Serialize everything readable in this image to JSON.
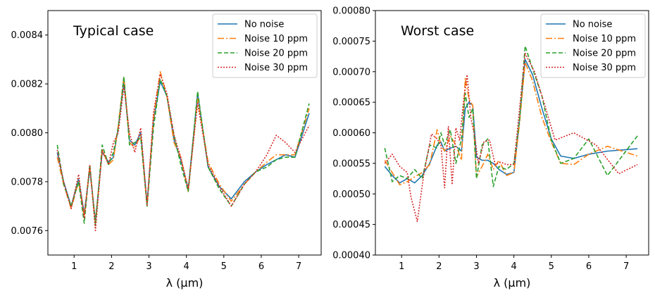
{
  "chart_data": [
    {
      "type": "line",
      "title": "Typical case",
      "xlabel": "λ (μm)",
      "ylabel": "",
      "xlim": [
        0.3,
        7.6
      ],
      "ylim": [
        0.0075,
        0.0085
      ],
      "xticks": [
        1,
        2,
        3,
        4,
        5,
        6,
        7
      ],
      "yticks": [
        0.0076,
        0.0078,
        0.008,
        0.0082,
        0.0084
      ],
      "ytick_labels": [
        "0.0076",
        "0.0078",
        "0.0080",
        "0.0082",
        "0.0084"
      ],
      "legend_position": "top-right",
      "x": [
        0.55,
        0.72,
        0.92,
        1.12,
        1.27,
        1.42,
        1.57,
        1.75,
        1.92,
        2.05,
        2.18,
        2.33,
        2.48,
        2.62,
        2.78,
        2.95,
        3.12,
        3.3,
        3.48,
        3.67,
        3.85,
        4.05,
        4.3,
        4.58,
        4.88,
        5.2,
        5.55,
        5.85,
        6.15,
        6.4,
        6.65,
        6.9,
        7.28
      ],
      "series": [
        {
          "name": "No noise",
          "color": "#1f77b4",
          "dash": "solid",
          "values": [
            0.00792,
            0.0078,
            0.0077,
            0.00781,
            0.00767,
            0.00785,
            0.00764,
            0.00792,
            0.00788,
            0.0079,
            0.00802,
            0.00821,
            0.00797,
            0.00795,
            0.008,
            0.00771,
            0.00805,
            0.00821,
            0.00815,
            0.00797,
            0.00789,
            0.00777,
            0.00816,
            0.00786,
            0.00778,
            0.00773,
            0.0078,
            0.00784,
            0.00787,
            0.00789,
            0.00791,
            0.0079,
            0.00808
          ]
        },
        {
          "name": "Noise 10 ppm",
          "color": "#ff7f0e",
          "dash": "dashdot",
          "values": [
            0.0079,
            0.00779,
            0.00769,
            0.0078,
            0.00766,
            0.00786,
            0.00763,
            0.00793,
            0.00787,
            0.00789,
            0.00803,
            0.00823,
            0.00796,
            0.00794,
            0.00799,
            0.0077,
            0.00806,
            0.00825,
            0.00815,
            0.00796,
            0.0079,
            0.00776,
            0.00814,
            0.00788,
            0.00779,
            0.00772,
            0.00779,
            0.00784,
            0.00788,
            0.00791,
            0.00791,
            0.00791,
            0.0081
          ]
        },
        {
          "name": "Noise 20 ppm",
          "color": "#2ca02c",
          "dash": "dashed",
          "values": [
            0.00795,
            0.00779,
            0.0077,
            0.0078,
            0.00763,
            0.00787,
            0.00762,
            0.00795,
            0.00787,
            0.00792,
            0.00802,
            0.00823,
            0.00795,
            0.00796,
            0.00798,
            0.0077,
            0.00802,
            0.00822,
            0.00815,
            0.00799,
            0.00787,
            0.00776,
            0.00817,
            0.00786,
            0.00777,
            0.0077,
            0.00779,
            0.00784,
            0.00786,
            0.00789,
            0.0079,
            0.0079,
            0.00812
          ]
        },
        {
          "name": "Noise 30 ppm",
          "color": "#d62728",
          "dash": "dotted",
          "values": [
            0.00793,
            0.0078,
            0.00769,
            0.00783,
            0.00765,
            0.00787,
            0.0076,
            0.00793,
            0.00787,
            0.00796,
            0.008,
            0.00819,
            0.008,
            0.00792,
            0.00802,
            0.0077,
            0.00808,
            0.00824,
            0.00816,
            0.00799,
            0.0079,
            0.00777,
            0.00812,
            0.00787,
            0.00778,
            0.0077,
            0.00779,
            0.00784,
            0.00791,
            0.00799,
            0.00796,
            0.00792,
            0.00803
          ]
        }
      ]
    },
    {
      "type": "line",
      "title": "Worst case",
      "xlabel": "λ (μm)",
      "ylabel": "",
      "xlim": [
        0.3,
        7.6
      ],
      "ylim": [
        0.0004,
        0.0008
      ],
      "xticks": [
        1,
        2,
        3,
        4,
        5,
        6,
        7
      ],
      "yticks": [
        0.0004,
        0.00045,
        0.0005,
        0.00055,
        0.0006,
        0.00065,
        0.0007,
        0.00075,
        0.0008
      ],
      "ytick_labels": [
        "0.00040",
        "0.00045",
        "0.00050",
        "0.00055",
        "0.00060",
        "0.00065",
        "0.00070",
        "0.00075",
        "0.00080"
      ],
      "legend_position": "top-right",
      "series": [
        {
          "name": "No noise",
          "color": "#1f77b4",
          "dash": "solid",
          "x": [
            0.55,
            0.75,
            0.95,
            1.15,
            1.35,
            1.55,
            1.75,
            1.95,
            2.05,
            2.15,
            2.3,
            2.45,
            2.6,
            2.7,
            2.8,
            2.9,
            3.0,
            3.15,
            3.3,
            3.45,
            3.6,
            3.8,
            4.0,
            4.15,
            4.3,
            4.5,
            4.75,
            5.0,
            5.25,
            5.6,
            6.0,
            6.5,
            7.3
          ],
          "values": [
            0.000545,
            0.00053,
            0.000518,
            0.000525,
            0.000518,
            0.00053,
            0.00055,
            0.00058,
            0.000585,
            0.00057,
            0.000575,
            0.000578,
            0.00057,
            0.00064,
            0.00065,
            0.000645,
            0.00056,
            0.000555,
            0.000555,
            0.00055,
            0.00054,
            0.000532,
            0.000535,
            0.00062,
            0.00072,
            0.000695,
            0.00064,
            0.00059,
            0.000562,
            0.000558,
            0.000565,
            0.00057,
            0.000574
          ]
        },
        {
          "name": "Noise 10 ppm",
          "color": "#ff7f0e",
          "dash": "dashdot",
          "x": [
            0.55,
            0.75,
            0.95,
            1.15,
            1.35,
            1.55,
            1.75,
            1.95,
            2.05,
            2.15,
            2.3,
            2.45,
            2.6,
            2.7,
            2.8,
            2.9,
            3.0,
            3.15,
            3.3,
            3.45,
            3.6,
            3.8,
            4.0,
            4.15,
            4.3,
            4.5,
            4.75,
            5.0,
            5.25,
            5.6,
            6.0,
            6.5,
            7.3
          ],
          "values": [
            0.000555,
            0.000535,
            0.000515,
            0.00052,
            0.000528,
            0.000535,
            0.000548,
            0.000605,
            0.00058,
            0.00057,
            0.000595,
            0.00058,
            0.000555,
            0.00069,
            0.000655,
            0.000645,
            0.000528,
            0.000545,
            0.000565,
            0.00054,
            0.000555,
            0.00053,
            0.000535,
            0.000615,
            0.000715,
            0.000685,
            0.000625,
            0.000585,
            0.00055,
            0.000548,
            0.000565,
            0.000578,
            0.000562
          ]
        },
        {
          "name": "Noise 20 ppm",
          "color": "#2ca02c",
          "dash": "dashed",
          "x": [
            0.55,
            0.75,
            0.95,
            1.15,
            1.35,
            1.55,
            1.75,
            1.95,
            2.05,
            2.15,
            2.3,
            2.45,
            2.6,
            2.7,
            2.8,
            2.9,
            3.0,
            3.15,
            3.3,
            3.45,
            3.6,
            3.8,
            4.0,
            4.15,
            4.3,
            4.5,
            4.75,
            5.0,
            5.25,
            5.6,
            6.0,
            6.5,
            7.3
          ],
          "values": [
            0.000575,
            0.00052,
            0.00053,
            0.000525,
            0.00054,
            0.000525,
            0.00058,
            0.000575,
            0.0006,
            0.00058,
            0.000605,
            0.00055,
            0.00059,
            0.000665,
            0.000625,
            0.00064,
            0.000525,
            0.00058,
            0.00059,
            0.000512,
            0.000545,
            0.00054,
            0.00055,
            0.00062,
            0.000742,
            0.000705,
            0.00066,
            0.000588,
            0.00055,
            0.000558,
            0.00059,
            0.00053,
            0.000595
          ]
        },
        {
          "name": "Noise 30 ppm",
          "color": "#d62728",
          "dash": "dotted",
          "x": [
            0.55,
            0.75,
            0.95,
            1.15,
            1.25,
            1.42,
            1.6,
            1.8,
            1.95,
            2.05,
            2.15,
            2.25,
            2.35,
            2.45,
            2.55,
            2.65,
            2.75,
            2.85,
            2.95,
            3.05,
            3.2,
            3.35,
            3.5,
            3.65,
            3.8,
            4.0,
            4.3,
            4.55,
            4.8,
            5.1,
            5.6,
            6.2,
            6.8,
            7.3
          ],
          "values": [
            0.00055,
            0.000565,
            0.000545,
            0.000535,
            0.000495,
            0.000455,
            0.000535,
            0.000598,
            0.00059,
            0.00058,
            0.00051,
            0.00061,
            0.000515,
            0.000608,
            0.000588,
            0.00065,
            0.000695,
            0.000625,
            0.000595,
            0.00055,
            0.000585,
            0.000588,
            0.000548,
            0.000552,
            0.000548,
            0.000548,
            0.00073,
            0.0007,
            0.00065,
            0.000588,
            0.0006,
            0.00058,
            0.000533,
            0.000548
          ]
        }
      ]
    }
  ]
}
